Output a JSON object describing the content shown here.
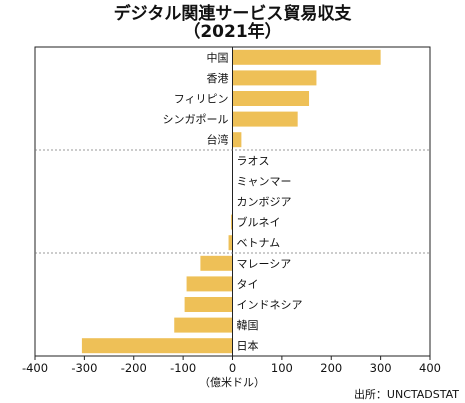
{
  "chart_data": {
    "type": "bar",
    "orientation": "horizontal",
    "title": "デジタル関連サービス貿易収支",
    "subtitle": "（2021年）",
    "categories": [
      "中国",
      "香港",
      "フィリピン",
      "シンガポール",
      "台湾",
      "ラオス",
      "ミャンマー",
      "カンボジア",
      "ブルネイ",
      "ベトナム",
      "マレーシア",
      "タイ",
      "インドネシア",
      "韓国",
      "日本"
    ],
    "values": [
      300,
      170,
      155,
      132,
      18,
      0.5,
      0.5,
      0.5,
      -3,
      -8,
      -65,
      -93,
      -97,
      -118,
      -305
    ],
    "xlim": [
      -400,
      400
    ],
    "xticks": [
      -400,
      -300,
      -200,
      -100,
      0,
      100,
      200,
      300,
      400
    ],
    "xtick_labels": [
      "-400",
      "-300",
      "-200",
      "-100",
      "0",
      "100",
      "200",
      "300",
      "400"
    ],
    "unit_label": "（億米ドル）",
    "bar_color": "#eec057",
    "grid": false
  },
  "source": "出所：UNCTADSTAT"
}
